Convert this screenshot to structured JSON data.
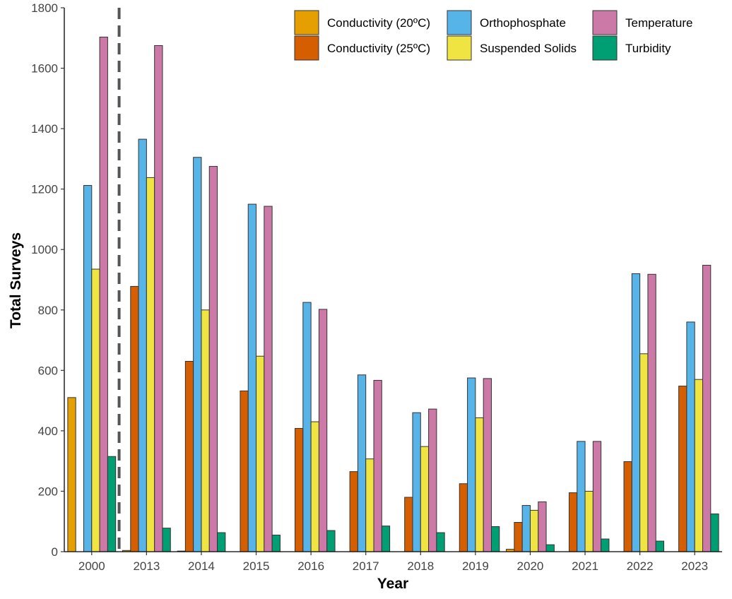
{
  "chart_data": {
    "type": "bar",
    "title": "",
    "xlabel": "Year",
    "ylabel": "Total Surveys",
    "ylim": [
      0,
      1800
    ],
    "yticks": [
      0,
      200,
      400,
      600,
      800,
      1000,
      1200,
      1400,
      1600,
      1800
    ],
    "grid": false,
    "legend_position": "top-right",
    "reference_line": {
      "style": "dashed",
      "between": [
        "2000",
        "2013"
      ]
    },
    "categories": [
      "2000",
      "2013",
      "2014",
      "2015",
      "2016",
      "2017",
      "2018",
      "2019",
      "2020",
      "2021",
      "2022",
      "2023"
    ],
    "series": [
      {
        "name": "Conductivity (20ºC)",
        "color": "#E69F00",
        "values": [
          510,
          4,
          2,
          0,
          0,
          0,
          0,
          0,
          8,
          0,
          0,
          0
        ]
      },
      {
        "name": "Conductivity (25ºC)",
        "color": "#D55E00",
        "values": [
          0,
          878,
          630,
          532,
          408,
          265,
          180,
          225,
          97,
          195,
          298,
          548
        ]
      },
      {
        "name": "Orthophosphate",
        "color": "#56B4E9",
        "values": [
          1212,
          1365,
          1305,
          1150,
          825,
          585,
          460,
          575,
          153,
          365,
          920,
          760
        ]
      },
      {
        "name": "Suspended Solids",
        "color": "#F0E442",
        "values": [
          935,
          1238,
          800,
          647,
          430,
          307,
          348,
          443,
          137,
          200,
          655,
          570
        ]
      },
      {
        "name": "Temperature",
        "color": "#CC79A7",
        "values": [
          1703,
          1675,
          1275,
          1143,
          802,
          567,
          472,
          573,
          165,
          365,
          918,
          948
        ]
      },
      {
        "name": "Turbidity",
        "color": "#009E73",
        "values": [
          315,
          78,
          63,
          55,
          70,
          85,
          63,
          83,
          23,
          42,
          35,
          125
        ]
      }
    ]
  }
}
